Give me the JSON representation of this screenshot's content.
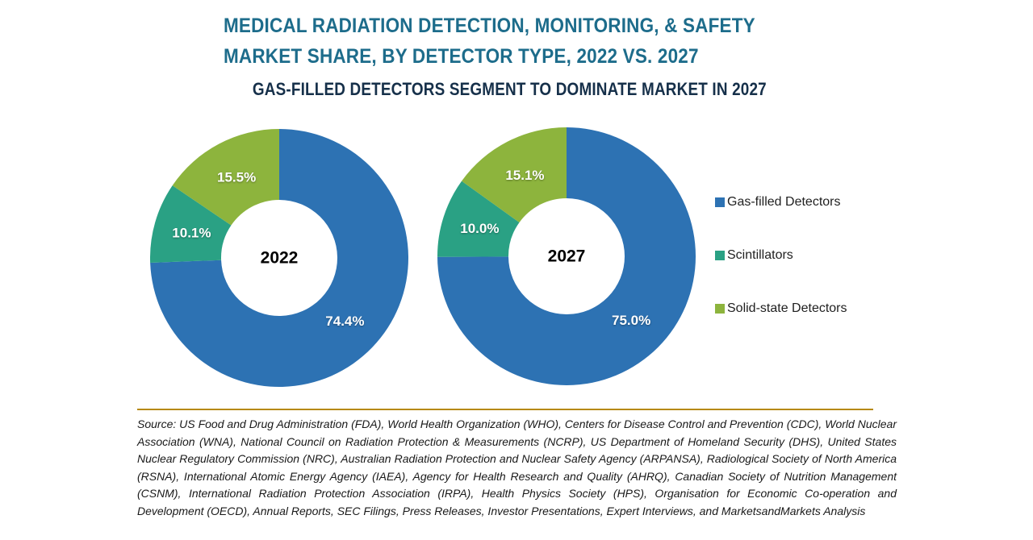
{
  "page": {
    "title_line1": "MEDICAL RADIATION DETECTION, MONITORING, & SAFETY",
    "title_line2": "MARKET SHARE, BY DETECTOR TYPE, 2022 VS. 2027",
    "subtitle": "GAS-FILLED DETECTORS SEGMENT TO DOMINATE MARKET IN 2027"
  },
  "colors": {
    "title": "#1D6C8B",
    "subtitle": "#16304A",
    "gas_filled": "#2D72B3",
    "scintillators": "#2AA184",
    "solid_state": "#8DB43D",
    "divider": "#B6890E",
    "slice_label": "#FFFFFF",
    "center_label": "#000000"
  },
  "chart_data": {
    "type": "pie",
    "variant": "donut",
    "categories": [
      "Gas-filled Detectors",
      "Scintillators",
      "Solid-state Detectors"
    ],
    "colors": [
      "#2D72B3",
      "#2AA184",
      "#8DB43D"
    ],
    "start_angle_deg": 0,
    "direction": "clockwise",
    "inner_radius_ratio": 0.45,
    "legend_position": "right",
    "series": [
      {
        "name": "2022",
        "center_label": "2022",
        "values": [
          74.4,
          10.1,
          15.5
        ],
        "labels": [
          "74.4%",
          "10.1%",
          "15.5%"
        ]
      },
      {
        "name": "2027",
        "center_label": "2027",
        "values": [
          75.0,
          10.0,
          15.1
        ],
        "labels": [
          "75.0%",
          "10.0%",
          "15.1%"
        ]
      }
    ]
  },
  "legend": {
    "items": [
      {
        "label": "Gas-filled Detectors",
        "color": "#2D72B3"
      },
      {
        "label": "Scintillators",
        "color": "#2AA184"
      },
      {
        "label": "Solid-state Detectors",
        "color": "#8DB43D"
      }
    ]
  },
  "source": {
    "text": "Source: US Food and Drug Administration (FDA), World Health Organization (WHO), Centers for Disease Control and Prevention (CDC), World Nuclear Association (WNA), National Council on Radiation Protection & Measurements (NCRP), US Department of Homeland Security (DHS), United States Nuclear Regulatory Commission (NRC), Australian Radiation Protection and Nuclear Safety Agency (ARPANSA), Radiological Society of North America (RSNA), International Atomic Energy Agency (IAEA), Agency for Health Research and Quality (AHRQ), Canadian Society of Nutrition Management (CSNM), International Radiation Protection Association (IRPA), Health Physics Society (HPS), Organisation for Economic Co-operation and Development (OECD), Annual Reports, SEC Filings, Press Releases, Investor Presentations, Expert Interviews, and MarketsandMarkets Analysis"
  }
}
